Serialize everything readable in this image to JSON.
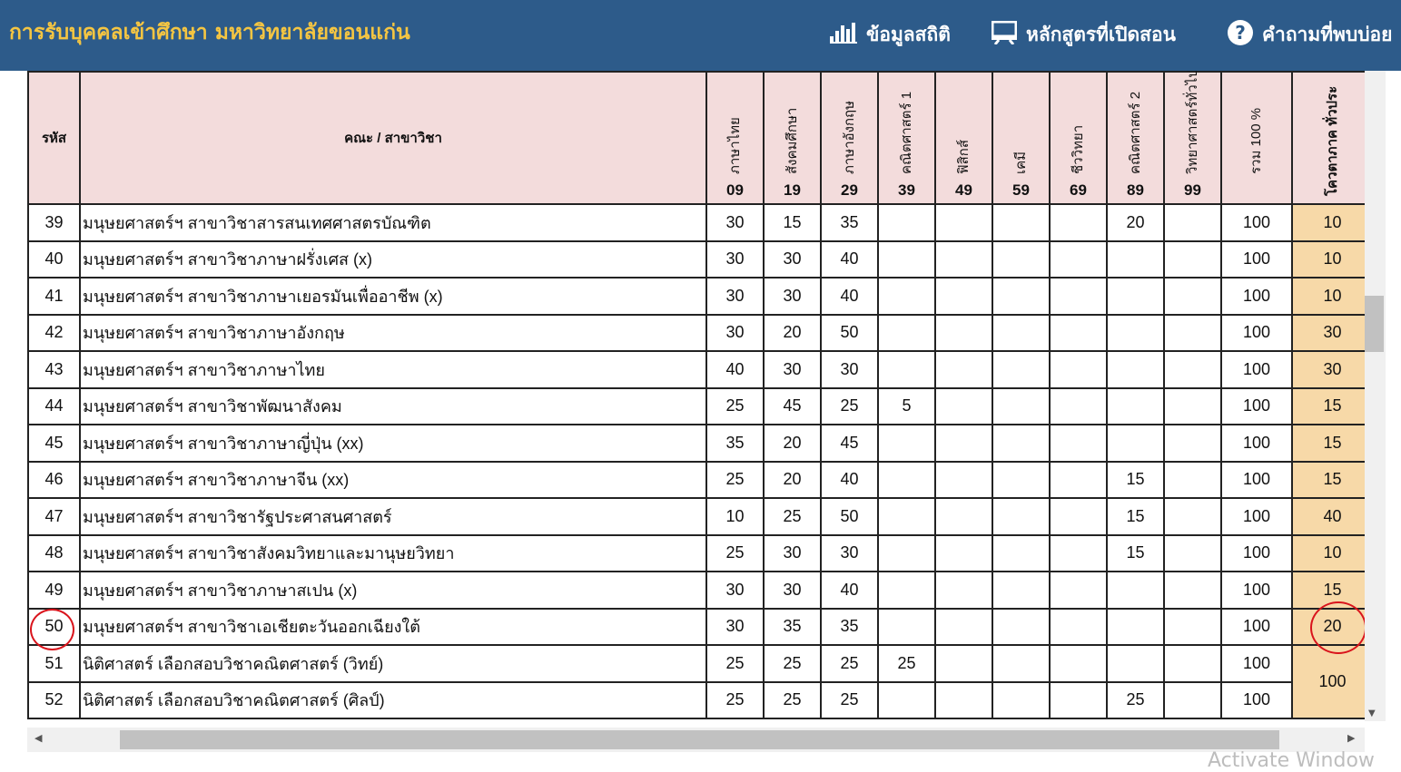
{
  "header": {
    "title": "การรับบุคคลเข้าศึกษา มหาวิทยาลัยขอนแก่น",
    "nav": [
      {
        "label": "ข้อมูลสถิติ",
        "icon": "bar-chart-icon"
      },
      {
        "label": "หลักสูตรที่เปิดสอน",
        "icon": "presentation-icon"
      },
      {
        "label": "คำถามที่พบบ่อย",
        "icon": "help-icon"
      }
    ]
  },
  "table": {
    "code_header": "รหัส",
    "name_header": "คณะ / สาขาวิชา",
    "subjects": [
      {
        "name": "ภาษาไทย",
        "code": "09"
      },
      {
        "name": "สังคมศึกษา",
        "code": "19"
      },
      {
        "name": "ภาษาอังกฤษ",
        "code": "29"
      },
      {
        "name": "คณิตศาสตร์ 1",
        "code": "39"
      },
      {
        "name": "ฟิสิกส์",
        "code": "49"
      },
      {
        "name": "เคมี",
        "code": "59"
      },
      {
        "name": "ชีววิทยา",
        "code": "69"
      },
      {
        "name": "คณิตศาสตร์ 2",
        "code": "89"
      },
      {
        "name": "วิทยาศาสตร์ทั่วไป",
        "code": "99"
      }
    ],
    "total_header": "รวม 100 %",
    "quota_header": "โควตาภาค ทั่วประ",
    "rows": [
      {
        "code": "39",
        "name": "มนุษยศาสตร์ฯ สาขาวิชาสารสนเทศศาสตรบัณฑิต",
        "scores": [
          "30",
          "15",
          "35",
          "",
          "",
          "",
          "",
          "20",
          ""
        ],
        "total": "100",
        "quota": "10"
      },
      {
        "code": "40",
        "name": "มนุษยศาสตร์ฯ สาขาวิชาภาษาฝรั่งเศส (x)",
        "scores": [
          "30",
          "30",
          "40",
          "",
          "",
          "",
          "",
          "",
          ""
        ],
        "total": "100",
        "quota": "10"
      },
      {
        "code": "41",
        "name": "มนุษยศาสตร์ฯ สาขาวิชาภาษาเยอรมันเพื่ออาชีพ (x)",
        "scores": [
          "30",
          "30",
          "40",
          "",
          "",
          "",
          "",
          "",
          ""
        ],
        "total": "100",
        "quota": "10"
      },
      {
        "code": "42",
        "name": "มนุษยศาสตร์ฯ สาขาวิชาภาษาอังกฤษ",
        "scores": [
          "30",
          "20",
          "50",
          "",
          "",
          "",
          "",
          "",
          ""
        ],
        "total": "100",
        "quota": "30"
      },
      {
        "code": "43",
        "name": "มนุษยศาสตร์ฯ สาขาวิชาภาษาไทย",
        "scores": [
          "40",
          "30",
          "30",
          "",
          "",
          "",
          "",
          "",
          ""
        ],
        "total": "100",
        "quota": "30"
      },
      {
        "code": "44",
        "name": "มนุษยศาสตร์ฯ  สาขาวิชาพัฒนาสังคม",
        "scores": [
          "25",
          "45",
          "25",
          "5",
          "",
          "",
          "",
          "",
          ""
        ],
        "total": "100",
        "quota": "15"
      },
      {
        "code": "45",
        "name": "มนุษยศาสตร์ฯ สาขาวิชาภาษาญี่ปุ่น (xx)",
        "scores": [
          "35",
          "20",
          "45",
          "",
          "",
          "",
          "",
          "",
          ""
        ],
        "total": "100",
        "quota": "15"
      },
      {
        "code": "46",
        "name": "มนุษยศาสตร์ฯ สาขาวิชาภาษาจีน  (xx)",
        "scores": [
          "25",
          "20",
          "40",
          "",
          "",
          "",
          "",
          "15",
          ""
        ],
        "total": "100",
        "quota": "15"
      },
      {
        "code": "47",
        "name": "มนุษยศาสตร์ฯ สาขาวิชารัฐประศาสนศาสตร์",
        "scores": [
          "10",
          "25",
          "50",
          "",
          "",
          "",
          "",
          "15",
          ""
        ],
        "total": "100",
        "quota": "40"
      },
      {
        "code": "48",
        "name": "มนุษยศาสตร์ฯ สาขาวิชาสังคมวิทยาและมานุษยวิทยา",
        "scores": [
          "25",
          "30",
          "30",
          "",
          "",
          "",
          "",
          "15",
          ""
        ],
        "total": "100",
        "quota": "10"
      },
      {
        "code": "49",
        "name": "มนุษยศาสตร์ฯ สาขาวิชาภาษาสเปน (x)",
        "scores": [
          "30",
          "30",
          "40",
          "",
          "",
          "",
          "",
          "",
          ""
        ],
        "total": "100",
        "quota": "15"
      },
      {
        "code": "50",
        "name": "มนุษยศาสตร์ฯ สาขาวิชาเอเชียตะวันออกเฉียงใต้",
        "scores": [
          "30",
          "35",
          "35",
          "",
          "",
          "",
          "",
          "",
          ""
        ],
        "total": "100",
        "quota": "20"
      },
      {
        "code": "51",
        "name": "นิติศาสตร์  เลือกสอบวิชาคณิตศาสตร์ (วิทย์)",
        "scores": [
          "25",
          "25",
          "25",
          "25",
          "",
          "",
          "",
          "",
          ""
        ],
        "total": "100",
        "quota": "100",
        "quota_rowspan": 2
      },
      {
        "code": "52",
        "name": "นิติศาสตร์  เลือกสอบวิชาคณิตศาสตร์ (ศิลป์)",
        "scores": [
          "25",
          "25",
          "25",
          "",
          "",
          "",
          "",
          "25",
          ""
        ],
        "total": "100"
      }
    ]
  },
  "overlay": {
    "watermark": "Activate Window"
  },
  "colors": {
    "header_bg": "#2d5b8a",
    "brand_text": "#f4c542",
    "table_header_bg": "#f3dcdc",
    "quota_bg": "#f7d9a8",
    "highlight_circle": "#d9141c"
  }
}
